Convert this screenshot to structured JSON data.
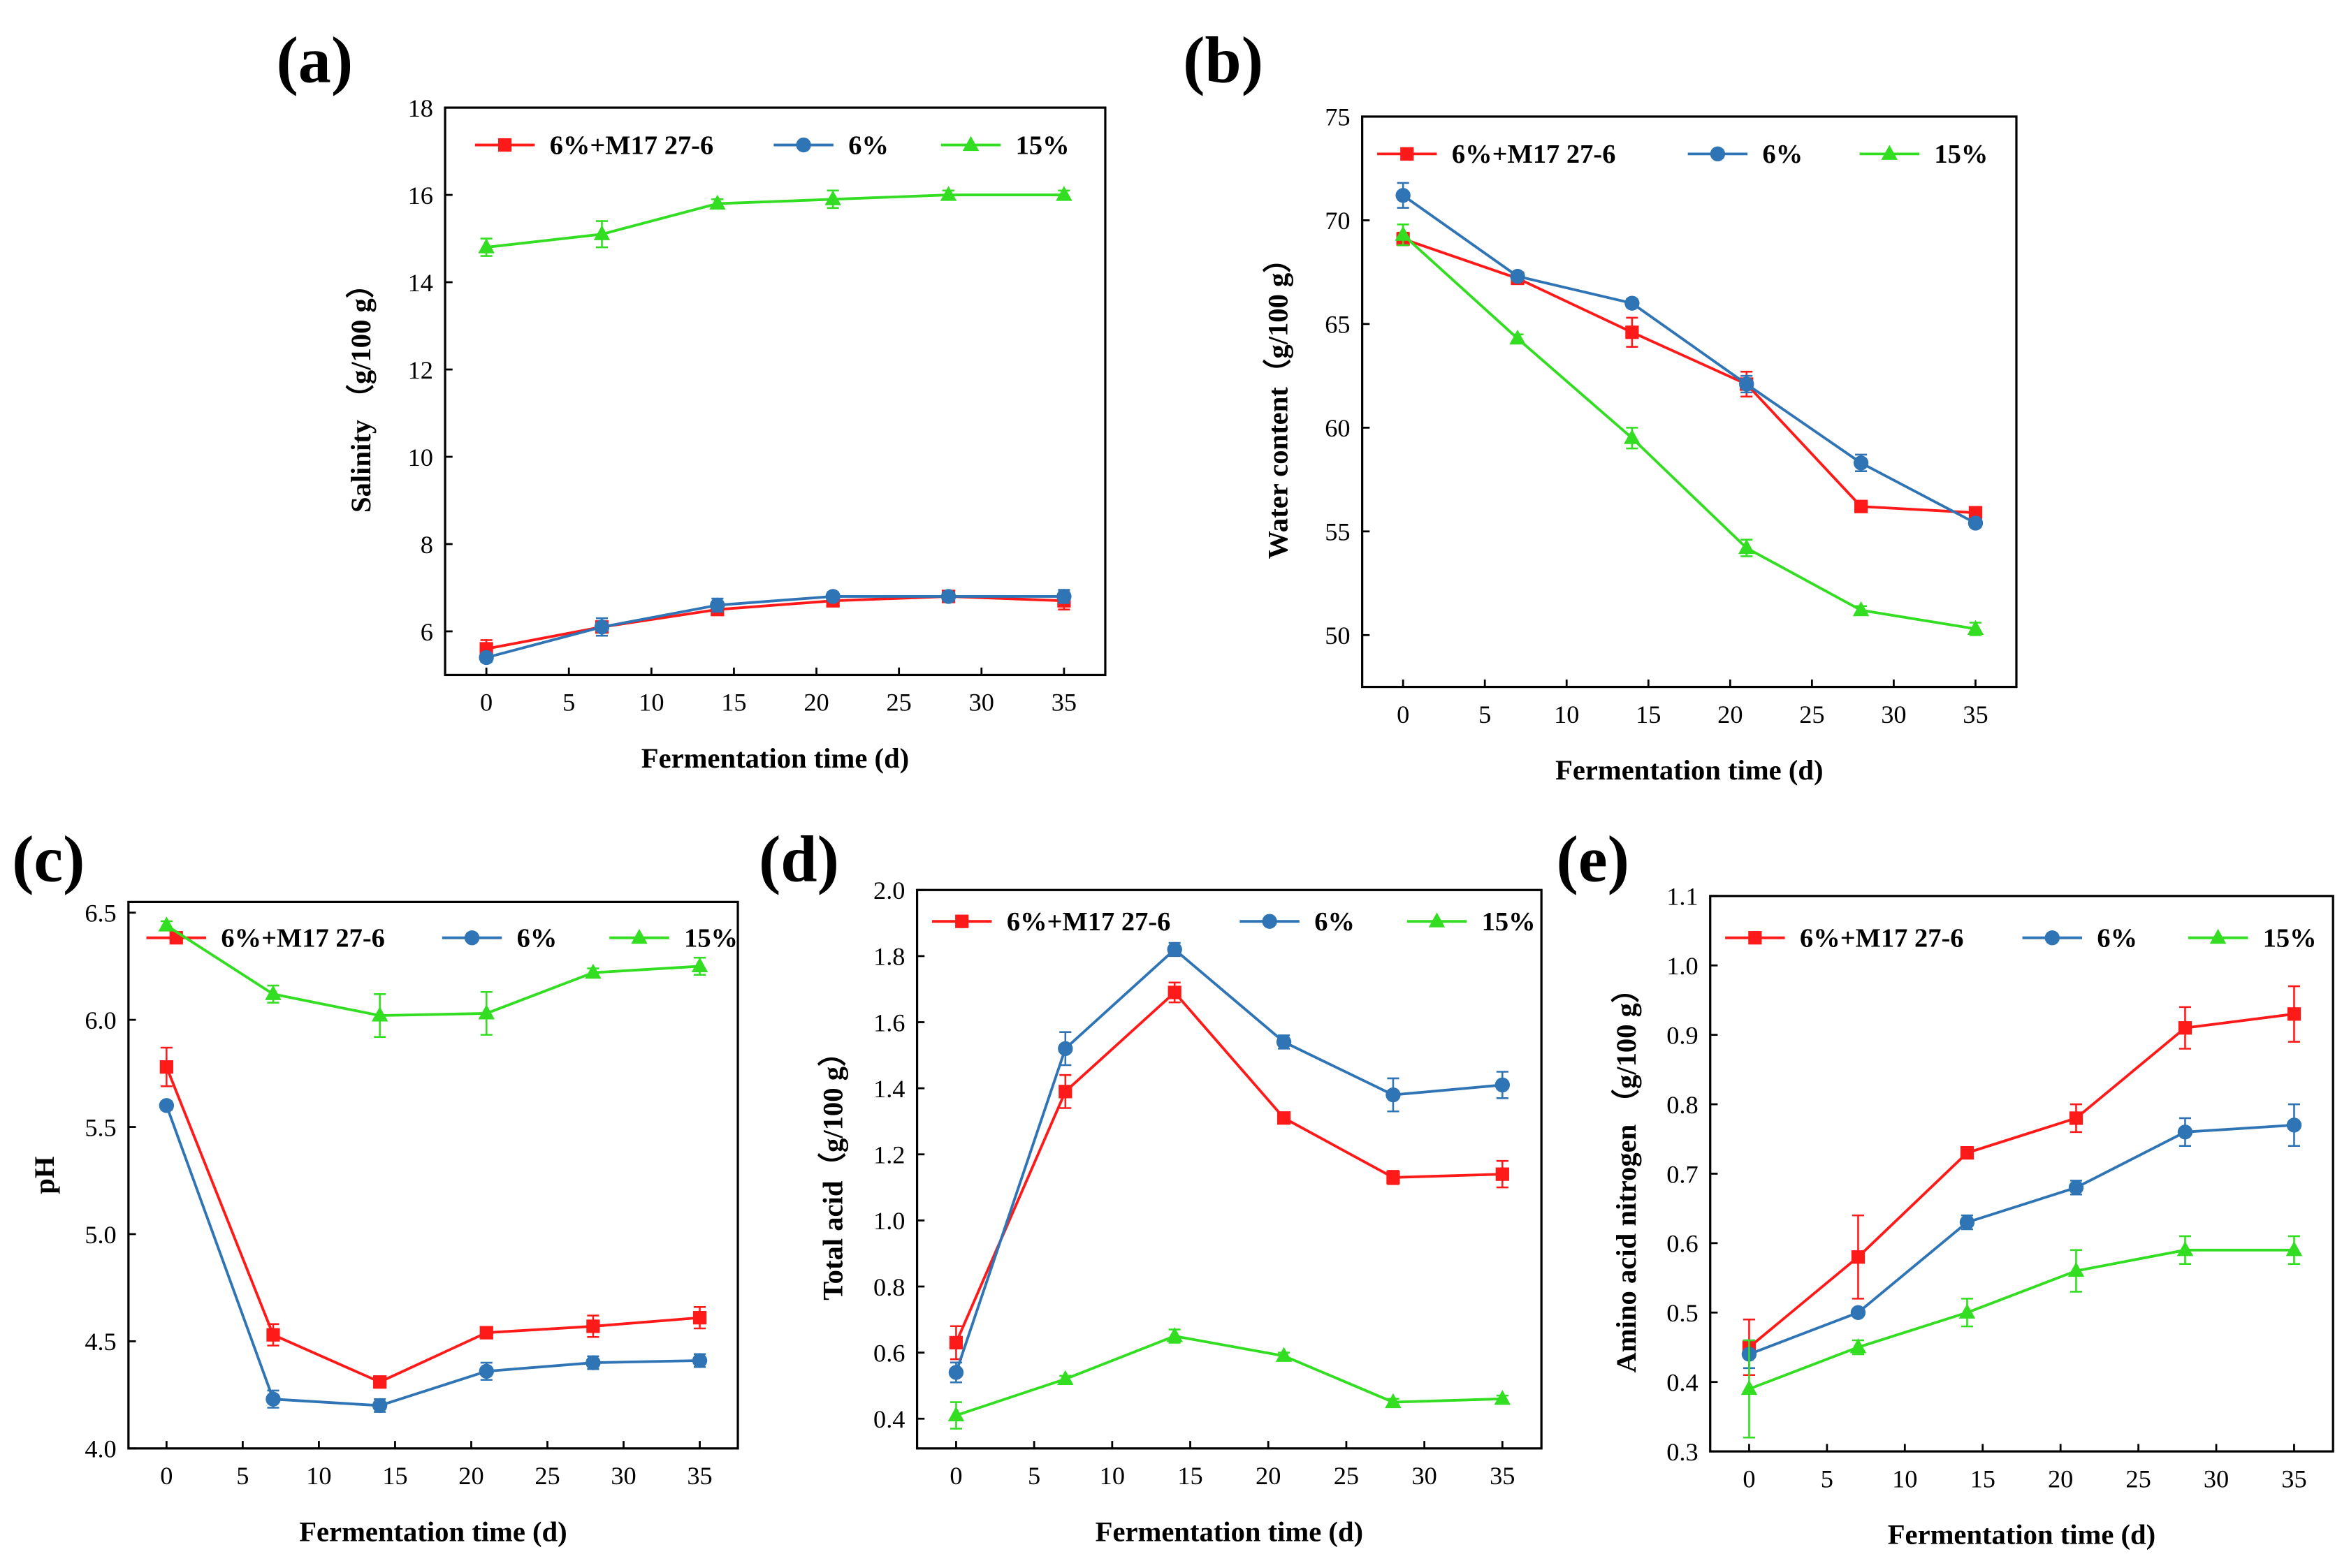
{
  "colors": {
    "red": "#ff1a1a",
    "blue": "#2f74b5",
    "green": "#33dd22"
  },
  "chart_data": [
    {
      "panel": "(a)",
      "type": "line",
      "xlabel": "Fermentation time (d)",
      "ylabel": "Salinity （g/100 g）",
      "x": [
        0,
        7,
        14,
        21,
        28,
        35
      ],
      "xlim": [
        -2.5,
        37.5
      ],
      "ylim": [
        5,
        18
      ],
      "xticks": [
        0,
        5,
        10,
        15,
        20,
        25,
        30,
        35
      ],
      "yticks": [
        6,
        8,
        10,
        12,
        14,
        16,
        18
      ],
      "ydec": 0,
      "series": [
        {
          "name": "6%+M17 27-6",
          "color": "red",
          "marker": "square",
          "values": [
            5.6,
            6.1,
            6.5,
            6.7,
            6.8,
            6.7
          ],
          "errors": [
            0.2,
            0.1,
            0.1,
            0.1,
            0.1,
            0.2
          ]
        },
        {
          "name": "6%",
          "color": "blue",
          "marker": "circle",
          "values": [
            5.4,
            6.1,
            6.6,
            6.8,
            6.8,
            6.8
          ],
          "errors": [
            0.1,
            0.2,
            0.15,
            0.1,
            0.1,
            0.15
          ]
        },
        {
          "name": "15%",
          "color": "green",
          "marker": "triangle",
          "values": [
            14.8,
            15.1,
            15.8,
            15.9,
            16.0,
            16.0
          ],
          "errors": [
            0.2,
            0.3,
            0.1,
            0.2,
            0.1,
            0.1
          ]
        }
      ]
    },
    {
      "panel": "(b)",
      "type": "line",
      "xlabel": "Fermentation time (d)",
      "ylabel": "Water content（g/100 g）",
      "x": [
        0,
        7,
        14,
        21,
        28,
        35
      ],
      "xlim": [
        -2.5,
        37.5
      ],
      "ylim": [
        47.5,
        75
      ],
      "xticks": [
        0,
        5,
        10,
        15,
        20,
        25,
        30,
        35
      ],
      "yticks": [
        50,
        55,
        60,
        65,
        70,
        75
      ],
      "ydec": 0,
      "series": [
        {
          "name": "6%+M17 27-6",
          "color": "red",
          "marker": "square",
          "values": [
            69.1,
            67.2,
            64.6,
            62.1,
            56.2,
            55.9
          ],
          "errors": [
            0.3,
            0.2,
            0.7,
            0.6,
            0.2,
            0.2
          ]
        },
        {
          "name": "6%",
          "color": "blue",
          "marker": "circle",
          "values": [
            71.2,
            67.3,
            66.0,
            62.1,
            58.3,
            55.4
          ],
          "errors": [
            0.6,
            0.2,
            0.2,
            0.4,
            0.4,
            0.2
          ]
        },
        {
          "name": "15%",
          "color": "green",
          "marker": "triangle",
          "values": [
            69.3,
            64.3,
            59.5,
            54.2,
            51.2,
            50.3
          ],
          "errors": [
            0.5,
            0.2,
            0.5,
            0.4,
            0.2,
            0.3
          ]
        }
      ]
    },
    {
      "panel": "(c)",
      "type": "line",
      "xlabel": "Fermentation time (d)",
      "ylabel": "pH",
      "x": [
        0,
        7,
        14,
        21,
        28,
        35
      ],
      "xlim": [
        -2.5,
        37.5
      ],
      "ylim": [
        4.0,
        6.55
      ],
      "xticks": [
        0,
        5,
        10,
        15,
        20,
        25,
        30,
        35
      ],
      "yticks": [
        4.0,
        4.5,
        5.0,
        5.5,
        6.0,
        6.5
      ],
      "ydec": 1,
      "series": [
        {
          "name": "6%+M17 27-6",
          "color": "red",
          "marker": "square",
          "values": [
            5.78,
            4.53,
            4.31,
            4.54,
            4.57,
            4.61
          ],
          "errors": [
            0.09,
            0.05,
            0.02,
            0.02,
            0.05,
            0.05
          ]
        },
        {
          "name": "6%",
          "color": "blue",
          "marker": "circle",
          "values": [
            5.6,
            4.23,
            4.2,
            4.36,
            4.4,
            4.41
          ],
          "errors": [
            0.02,
            0.04,
            0.03,
            0.04,
            0.03,
            0.03
          ]
        },
        {
          "name": "15%",
          "color": "green",
          "marker": "triangle",
          "values": [
            6.44,
            6.12,
            6.02,
            6.03,
            6.22,
            6.25
          ],
          "errors": [
            0.02,
            0.04,
            0.1,
            0.1,
            0.02,
            0.04
          ]
        }
      ]
    },
    {
      "panel": "(d)",
      "type": "line",
      "xlabel": "Fermentation time (d)",
      "ylabel": "Total acid（g/100 g）",
      "x": [
        0,
        7,
        14,
        21,
        28,
        35
      ],
      "xlim": [
        -2.5,
        37.5
      ],
      "ylim": [
        0.31,
        2.0
      ],
      "xticks": [
        0,
        5,
        10,
        15,
        20,
        25,
        30,
        35
      ],
      "yticks": [
        0.4,
        0.6,
        0.8,
        1.0,
        1.2,
        1.4,
        1.6,
        1.8,
        2.0
      ],
      "ydec": 1,
      "series": [
        {
          "name": "6%+M17 27-6",
          "color": "red",
          "marker": "square",
          "values": [
            0.63,
            1.39,
            1.69,
            1.31,
            1.13,
            1.14
          ],
          "errors": [
            0.05,
            0.05,
            0.03,
            0.01,
            0.02,
            0.04
          ]
        },
        {
          "name": "6%",
          "color": "blue",
          "marker": "circle",
          "values": [
            0.54,
            1.52,
            1.82,
            1.54,
            1.38,
            1.41
          ],
          "errors": [
            0.03,
            0.05,
            0.02,
            0.02,
            0.05,
            0.04
          ]
        },
        {
          "name": "15%",
          "color": "green",
          "marker": "triangle",
          "values": [
            0.41,
            0.52,
            0.65,
            0.59,
            0.45,
            0.46
          ],
          "errors": [
            0.04,
            0.01,
            0.02,
            0.01,
            0.01,
            0.01
          ]
        }
      ]
    },
    {
      "panel": "(e)",
      "type": "line",
      "xlabel": "Fermentation time (d)",
      "ylabel": "Amino acid nitrogen （g/100 g）",
      "x": [
        0,
        7,
        14,
        21,
        28,
        35
      ],
      "xlim": [
        -2.5,
        37.5
      ],
      "ylim": [
        0.3,
        1.1
      ],
      "xticks": [
        0,
        5,
        10,
        15,
        20,
        25,
        30,
        35
      ],
      "yticks": [
        0.3,
        0.4,
        0.5,
        0.6,
        0.7,
        0.8,
        0.9,
        1.0,
        1.1
      ],
      "ydec": 1,
      "series": [
        {
          "name": "6%+M17 27-6",
          "color": "red",
          "marker": "square",
          "values": [
            0.45,
            0.58,
            0.73,
            0.78,
            0.91,
            0.93
          ],
          "errors": [
            0.04,
            0.06,
            0.005,
            0.02,
            0.03,
            0.04
          ]
        },
        {
          "name": "6%",
          "color": "blue",
          "marker": "circle",
          "values": [
            0.44,
            0.5,
            0.63,
            0.68,
            0.76,
            0.77
          ],
          "errors": [
            0.02,
            0.005,
            0.01,
            0.01,
            0.02,
            0.03
          ]
        },
        {
          "name": "15%",
          "color": "green",
          "marker": "triangle",
          "values": [
            0.39,
            0.45,
            0.5,
            0.56,
            0.59,
            0.59
          ],
          "errors": [
            0.07,
            0.01,
            0.02,
            0.03,
            0.02,
            0.02
          ]
        }
      ]
    }
  ]
}
